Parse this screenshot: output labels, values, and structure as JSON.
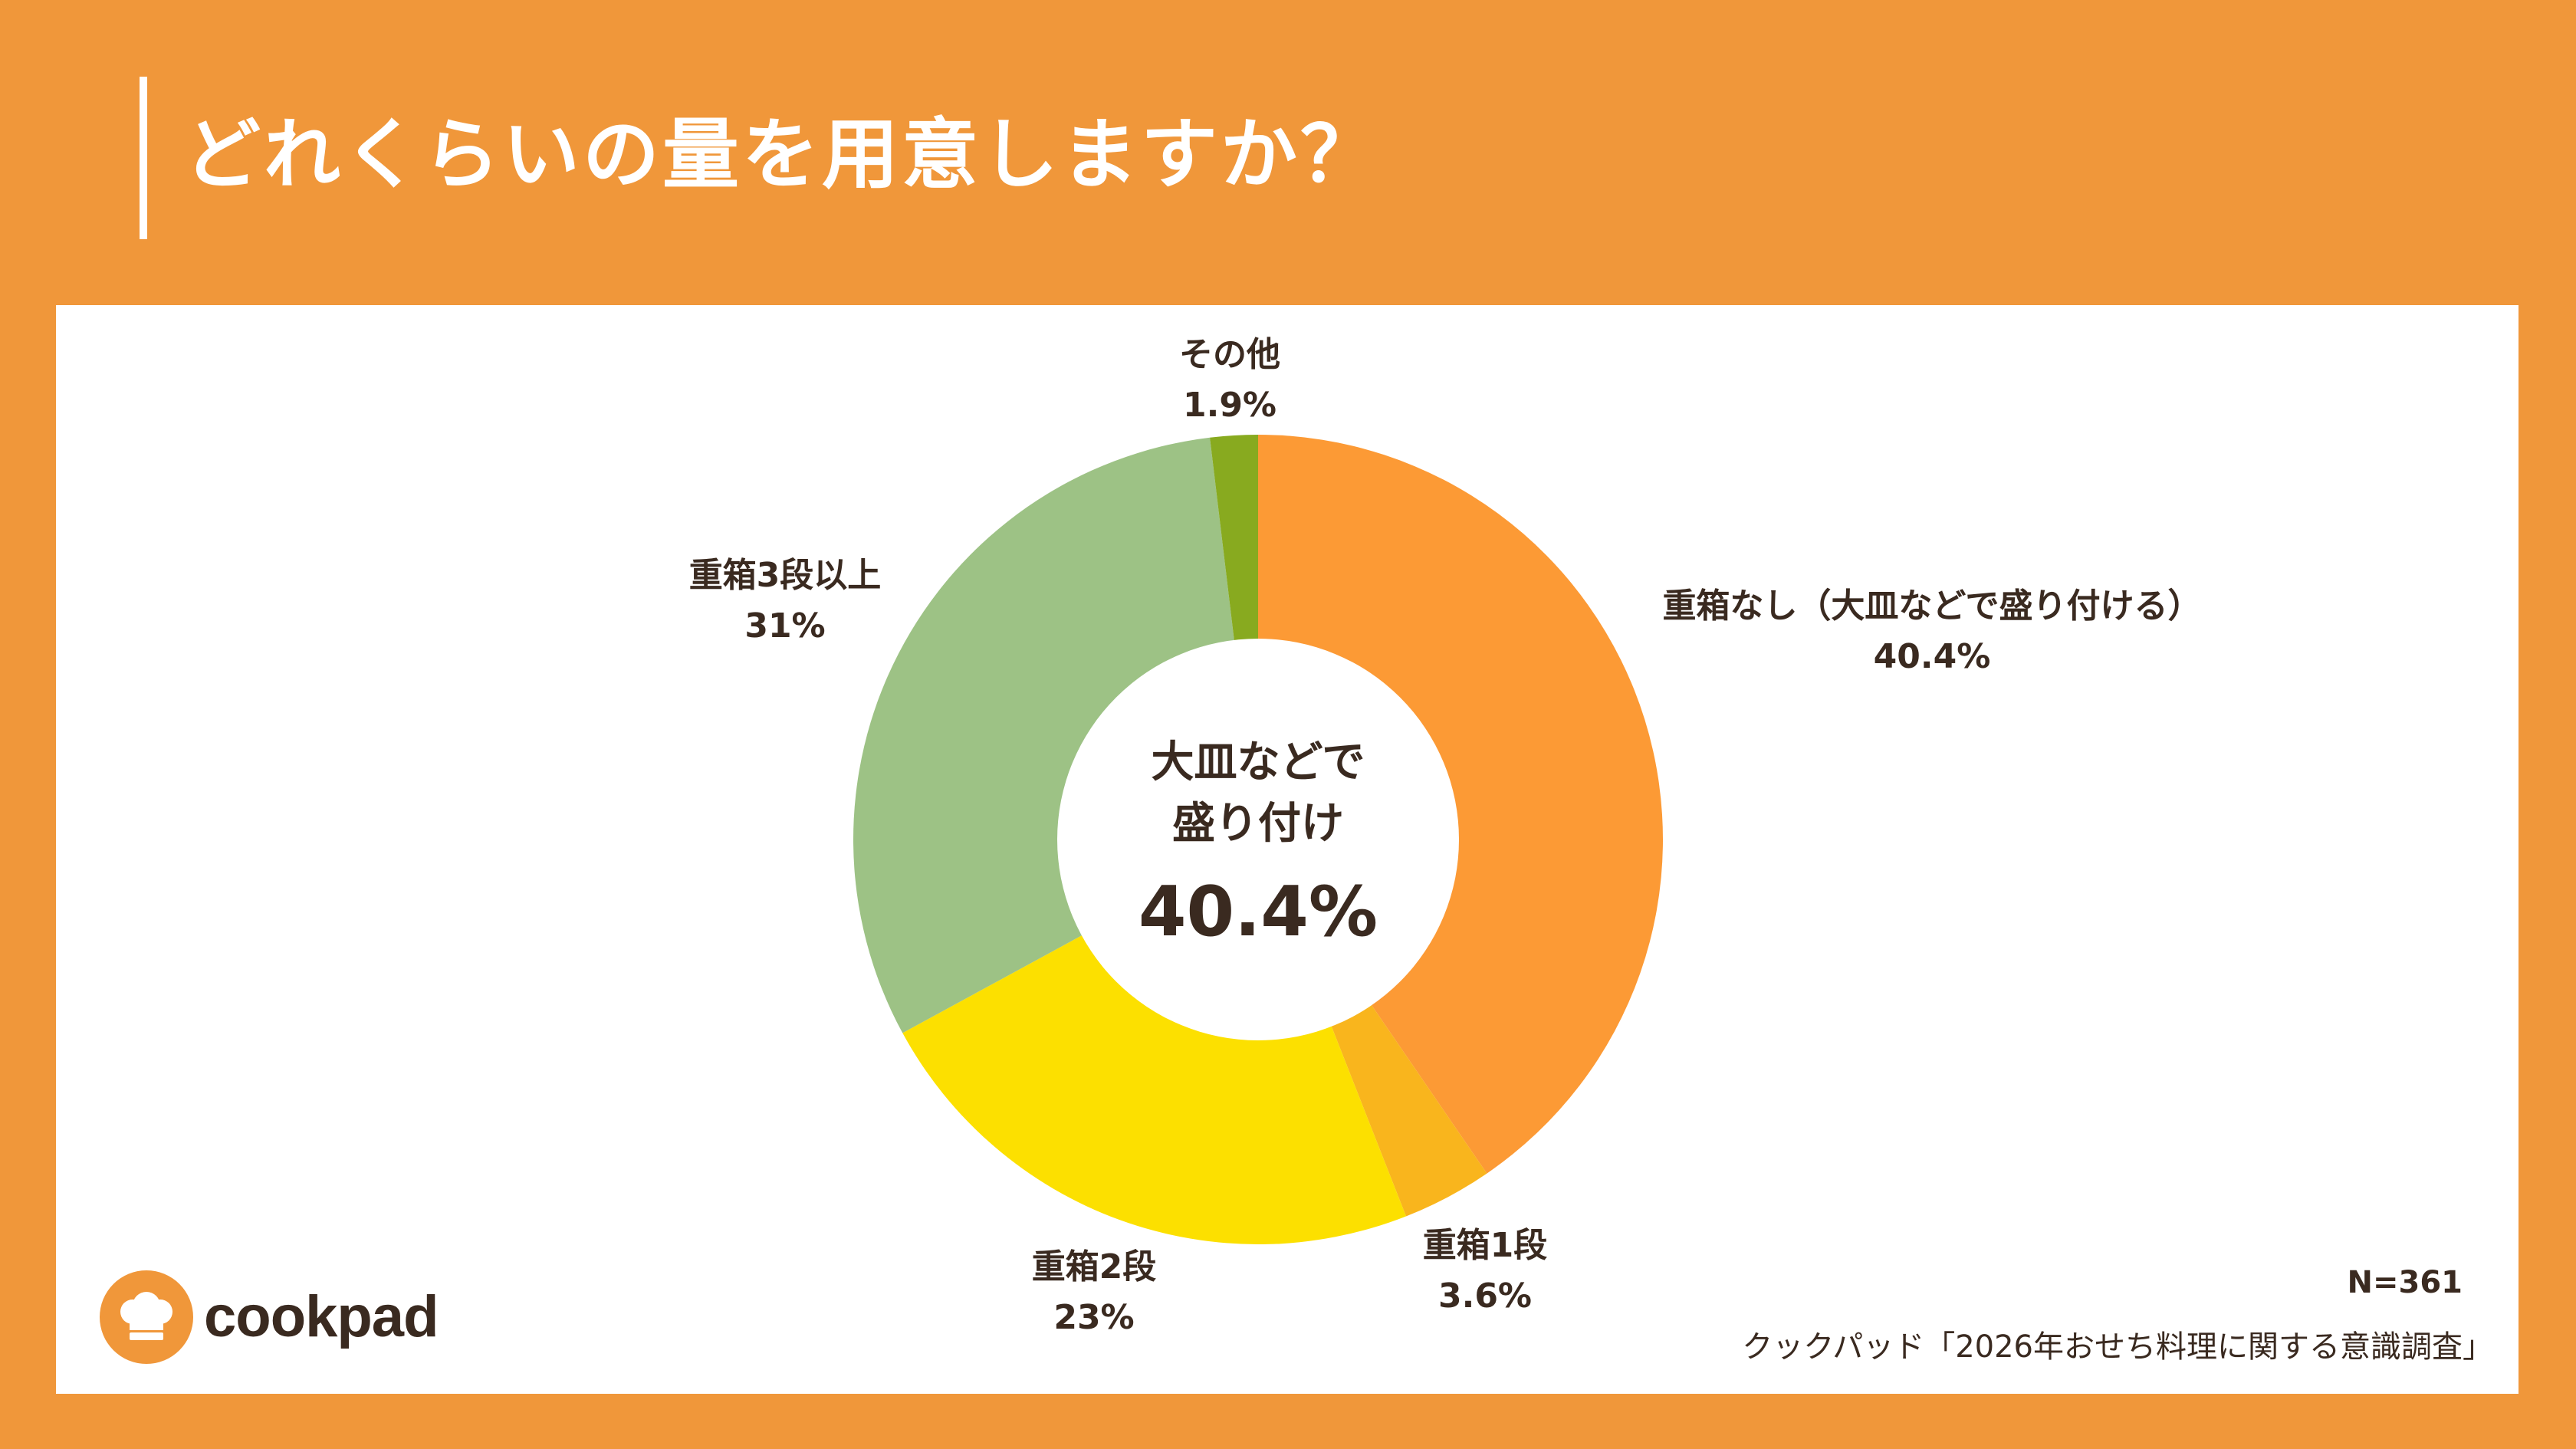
{
  "title": "どれくらいの量を用意しますか？",
  "chart_data": {
    "type": "pie",
    "title": "どれくらいの量を用意しますか？",
    "categories": [
      "重箱なし（大皿などで盛り付ける）",
      "重箱1段",
      "重箱2段",
      "重箱3段以上",
      "その他"
    ],
    "values": [
      40.4,
      3.6,
      23,
      31,
      1.9
    ],
    "value_labels": [
      "40.4%",
      "3.6%",
      "23%",
      "31%",
      "1.9%"
    ],
    "colors": [
      "#FC9A35",
      "#F9B51D",
      "#FCE000",
      "#9DC285",
      "#88AA1F"
    ],
    "style": "donut",
    "center_label": [
      "大皿などで",
      "盛り付け"
    ],
    "center_value": "40.4%"
  },
  "slices": [
    {
      "label": "重箱なし（大皿などで盛り付ける）",
      "value": "40.4%"
    },
    {
      "label": "重箱1段",
      "value": "3.6%"
    },
    {
      "label": "重箱2段",
      "value": "23%"
    },
    {
      "label": "重箱3段以上",
      "value": "31%"
    },
    {
      "label": "その他",
      "value": "1.9%"
    }
  ],
  "center": {
    "line1": "大皿などで",
    "line2": "盛り付け",
    "value": "40.4%"
  },
  "logo": {
    "text": "cookpad",
    "icon": "chef-hat-icon"
  },
  "footer": {
    "sample": "N=361",
    "source": "クックパッド「2026年おせち料理に関する意識調査」"
  }
}
